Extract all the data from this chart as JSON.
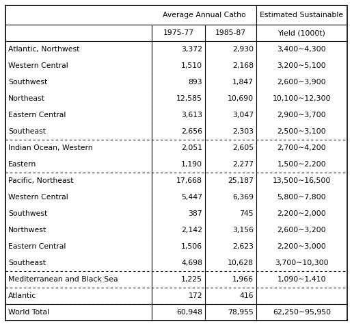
{
  "col_header1_left": "Average Annual Catho",
  "col_header1_right": "Estimated Sustainable",
  "col_header2": [
    "1975-77",
    "1985-87",
    "Yield (1000t)"
  ],
  "rows": [
    {
      "region": "Atlantic, Northwest",
      "v1": "3,372",
      "v2": "2,930",
      "v3": "3,400∼4,300",
      "group": "atlantic"
    },
    {
      "region": "Western Central",
      "v1": "1,510",
      "v2": "2,168",
      "v3": "3,200∼5,100",
      "group": "atlantic"
    },
    {
      "region": "Southwest",
      "v1": "893",
      "v2": "1,847",
      "v3": "2,600∼3,900",
      "group": "atlantic"
    },
    {
      "region": "Northeast",
      "v1": "12,585",
      "v2": "10,690",
      "v3": "10,100∼12,300",
      "group": "atlantic"
    },
    {
      "region": "Eastern Central",
      "v1": "3,613",
      "v2": "3,047",
      "v3": "2,900∼3,700",
      "group": "atlantic"
    },
    {
      "region": "Southeast",
      "v1": "2,656",
      "v2": "2,303",
      "v3": "2,500∼3,100",
      "group": "atlantic"
    },
    {
      "region": "Indian Ocean, Western",
      "v1": "2,051",
      "v2": "2,605",
      "v3": "2,700∼4,200",
      "group": "indian"
    },
    {
      "region": "Eastern",
      "v1": "1,190",
      "v2": "2,277",
      "v3": "1,500∼2,200",
      "group": "indian"
    },
    {
      "region": "Pacific, Northeast",
      "v1": "17,668",
      "v2": "25,187",
      "v3": "13,500∼16,500",
      "group": "pacific"
    },
    {
      "region": "Western Central",
      "v1": "5,447",
      "v2": "6,369",
      "v3": "5,800∼7,800",
      "group": "pacific"
    },
    {
      "region": "Southwest",
      "v1": "387",
      "v2": "745",
      "v3": "2,200∼2,000",
      "group": "pacific"
    },
    {
      "region": "Northwest",
      "v1": "2,142",
      "v2": "3,156",
      "v3": "2,600∼3,200",
      "group": "pacific"
    },
    {
      "region": "Eastern Central",
      "v1": "1,506",
      "v2": "2,623",
      "v3": "2,200∼3,000",
      "group": "pacific"
    },
    {
      "region": "Southeast",
      "v1": "4,698",
      "v2": "10,628",
      "v3": "3,700∼10,300",
      "group": "pacific"
    },
    {
      "region": "Mediterranean and Black Sea",
      "v1": "1,225",
      "v2": "1,966",
      "v3": "1,090∼1,410",
      "group": "med"
    },
    {
      "region": "Atlantic",
      "v1": "172",
      "v2": "416",
      "v3": "",
      "group": "atl2"
    },
    {
      "region": "World Total",
      "v1": "60,948",
      "v2": "78,955",
      "v3": "62,250∼95,950",
      "group": "total"
    }
  ],
  "dotted_sep_after": [
    5,
    7,
    13,
    14,
    15
  ],
  "solid_sep_before_total": true,
  "bg_color": "#ffffff",
  "font_size": 7.8,
  "header_font_size": 7.8
}
